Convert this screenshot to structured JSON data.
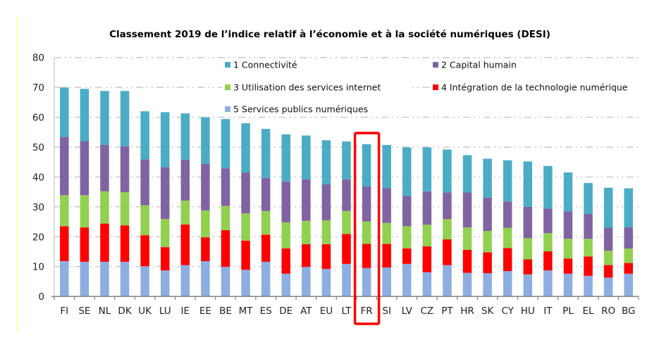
{
  "chart_data": {
    "type": "bar",
    "stacked": true,
    "title": "Classement 2019 de l’indice relatif à l’économie et à la société numériques (DESI)",
    "xlabel": "",
    "ylabel": "",
    "ylim": [
      0,
      80
    ],
    "yticks": [
      0,
      10,
      20,
      30,
      40,
      50,
      60,
      70,
      80
    ],
    "grid": true,
    "legend_position": "top-inside",
    "highlight_category": "FR",
    "categories": [
      "FI",
      "SE",
      "NL",
      "DK",
      "UK",
      "LU",
      "IE",
      "EE",
      "BE",
      "MT",
      "ES",
      "DE",
      "AT",
      "EU",
      "LT",
      "FR",
      "SI",
      "LV",
      "CZ",
      "PT",
      "HR",
      "SK",
      "CY",
      "HU",
      "IT",
      "PL",
      "EL",
      "RO",
      "BG"
    ],
    "series": [
      {
        "name": "5 Services publics numériques",
        "color": "#8EADE0",
        "values": [
          11.8,
          11.6,
          11.6,
          11.6,
          10.1,
          8.7,
          10.5,
          11.8,
          9.9,
          8.9,
          11.6,
          7.6,
          9.9,
          9.2,
          10.9,
          9.5,
          9.7,
          10.9,
          8.1,
          10.5,
          7.9,
          7.8,
          8.5,
          7.4,
          8.7,
          7.6,
          6.9,
          6.3,
          7.6
        ]
      },
      {
        "name": "4 Intégration de la technologie numérique",
        "color": "#FF0000",
        "values": [
          11.7,
          11.5,
          12.8,
          12.2,
          10.4,
          7.8,
          13.6,
          8.0,
          12.3,
          9.8,
          9.1,
          8.5,
          7.6,
          8.3,
          10.0,
          8.1,
          7.9,
          5.2,
          8.7,
          8.6,
          7.7,
          7.0,
          7.7,
          5.0,
          6.4,
          5.1,
          6.5,
          4.2,
          3.6
        ]
      },
      {
        "name": "3 Utilisation des services internet",
        "color": "#92D050",
        "values": [
          10.4,
          10.8,
          10.8,
          11.1,
          10.0,
          9.4,
          8.0,
          9.0,
          8.1,
          9.1,
          7.9,
          8.7,
          7.8,
          8.0,
          7.7,
          7.5,
          7.0,
          7.4,
          7.2,
          6.8,
          7.5,
          7.1,
          6.8,
          7.1,
          6.1,
          6.6,
          5.9,
          4.8,
          4.8
        ]
      },
      {
        "name": "2 Capital humain",
        "color": "#8064A2",
        "values": [
          19.5,
          18.1,
          15.6,
          15.4,
          15.4,
          17.4,
          13.7,
          15.6,
          12.6,
          13.7,
          11.1,
          13.7,
          13.9,
          12.0,
          10.6,
          11.7,
          11.7,
          10.1,
          11.2,
          8.9,
          11.7,
          11.2,
          8.8,
          10.5,
          8.2,
          9.2,
          8.3,
          7.7,
          7.2
        ]
      },
      {
        "name": "1 Connectivité",
        "color": "#4BACC6",
        "values": [
          16.6,
          17.5,
          18.0,
          18.5,
          16.1,
          18.4,
          15.5,
          15.6,
          16.5,
          16.5,
          16.4,
          15.8,
          14.7,
          14.8,
          12.7,
          14.2,
          14.4,
          16.3,
          14.7,
          14.4,
          12.5,
          13.0,
          13.8,
          15.2,
          14.3,
          13.0,
          10.4,
          13.4,
          13.0
        ]
      }
    ],
    "legend": [
      {
        "label": "1 Connectivité",
        "color": "#4BACC6"
      },
      {
        "label": "2 Capital humain",
        "color": "#8064A2"
      },
      {
        "label": "3 Utilisation des services internet",
        "color": "#92D050"
      },
      {
        "label": "4 Intégration de la technologie numérique",
        "color": "#FF0000"
      },
      {
        "label": "5 Services publics numériques",
        "color": "#8EADE0"
      }
    ]
  }
}
